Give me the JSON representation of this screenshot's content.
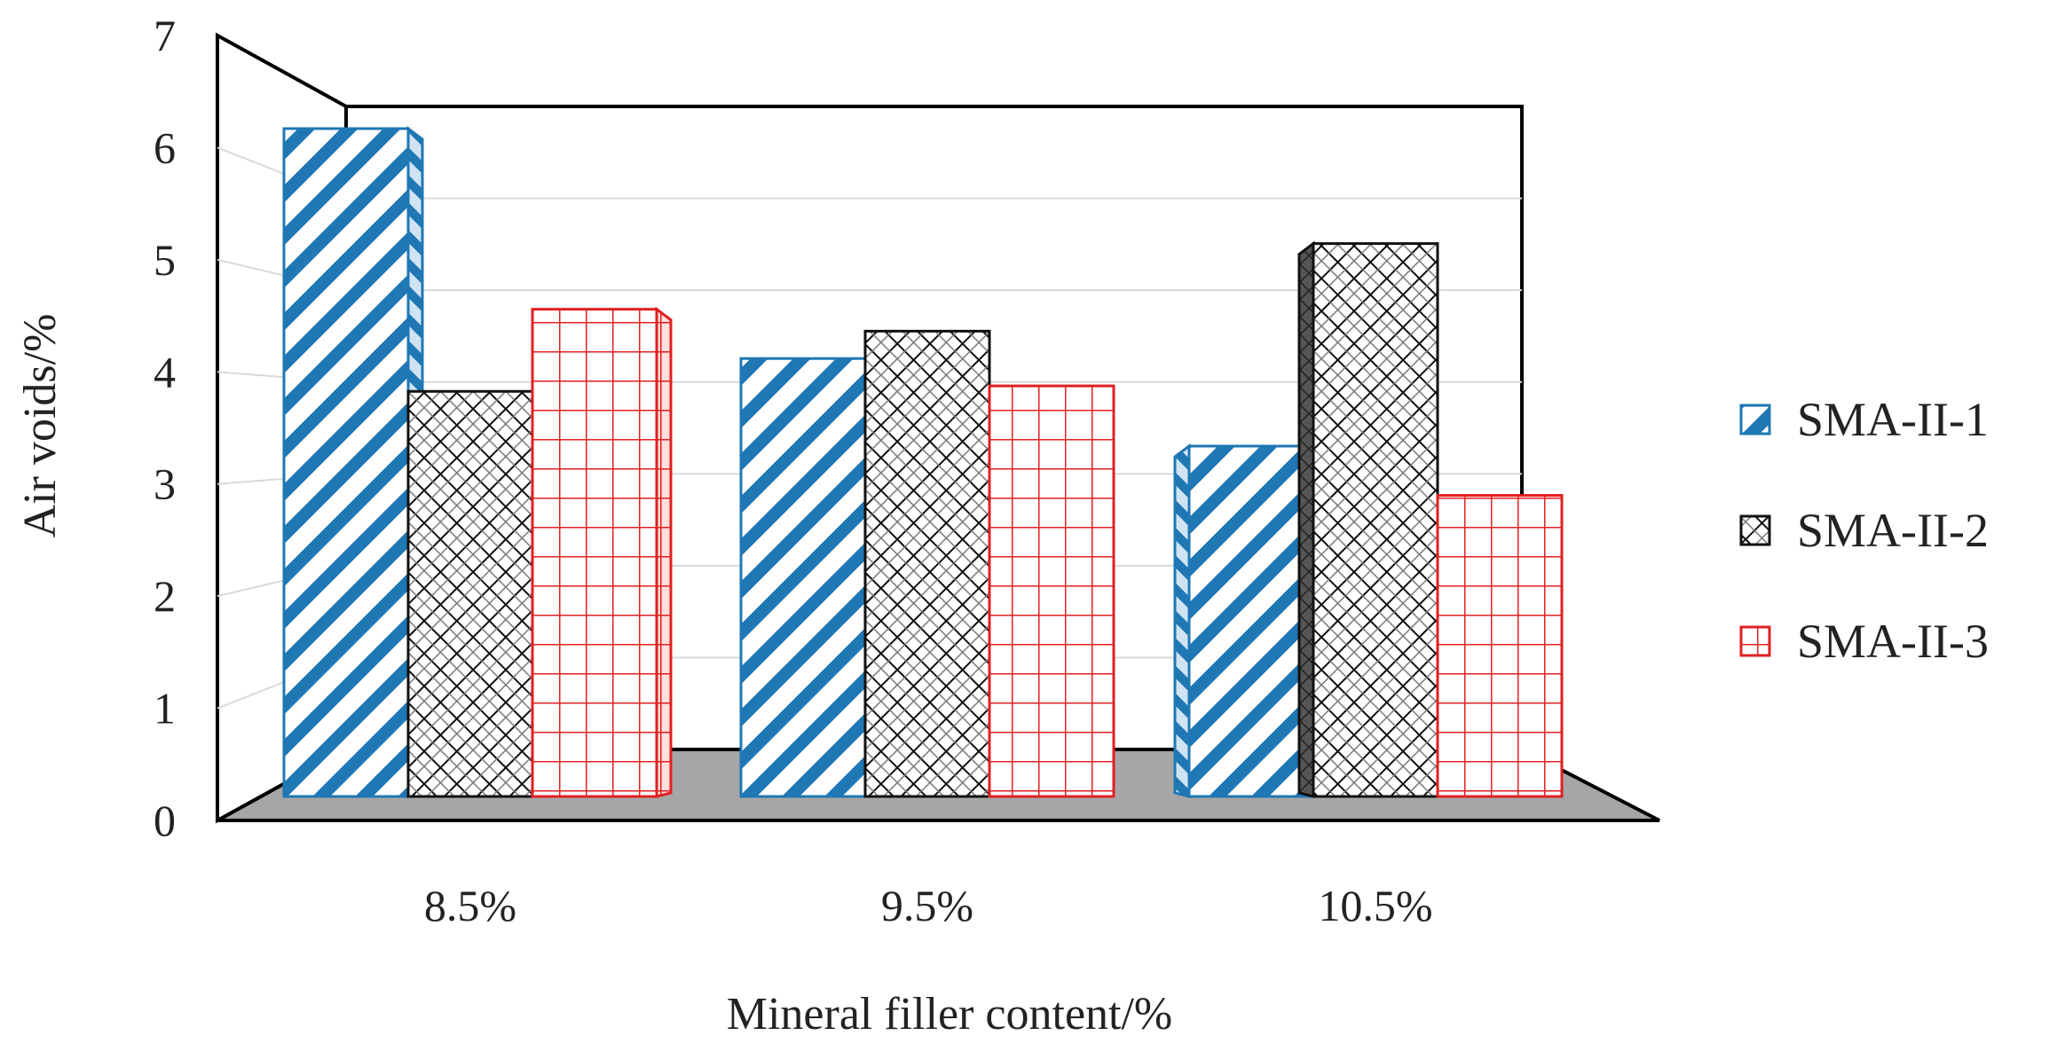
{
  "chart_data": {
    "type": "bar",
    "categories": [
      "8.5%",
      "9.5%",
      "10.5%"
    ],
    "series": [
      {
        "name": "SMA-II-1",
        "values": [
          6.1,
          4.0,
          3.2
        ],
        "color": "#1f77b4",
        "pattern": "diagonal-stripes"
      },
      {
        "name": "SMA-II-2",
        "values": [
          3.7,
          4.25,
          5.05
        ],
        "color": "#111111",
        "pattern": "crosshatch"
      },
      {
        "name": "SMA-II-3",
        "values": [
          4.45,
          3.75,
          2.75
        ],
        "color": "#e02020",
        "pattern": "grid"
      }
    ],
    "xlabel": "Mineral filler content/%",
    "ylabel": "Air voids/%",
    "ylim": [
      0,
      7
    ],
    "yticks": [
      "0",
      "1",
      "2",
      "3",
      "4",
      "5",
      "6",
      "7"
    ],
    "grid": true,
    "legend_position": "right",
    "style": "3d-clustered-column"
  }
}
